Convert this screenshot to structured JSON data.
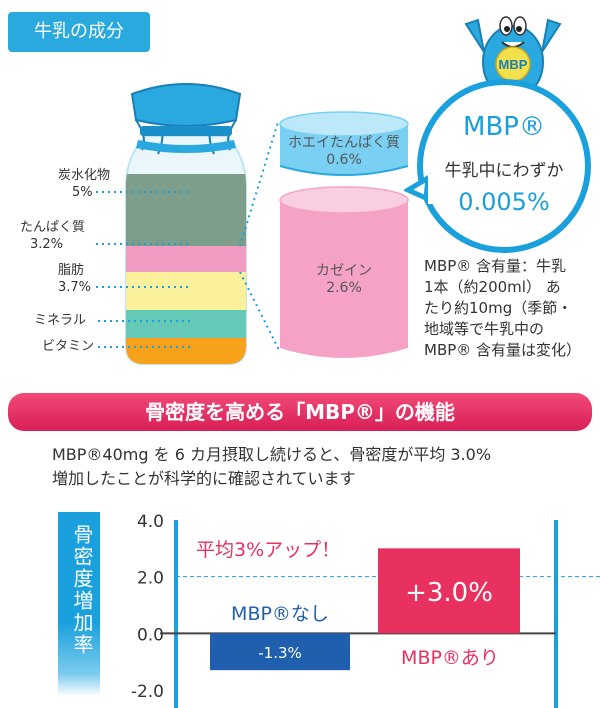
{
  "section_tag": "牛乳の成分",
  "mascot": {
    "label": "MBP"
  },
  "bottle": {
    "layers": [
      {
        "name": "炭水化物",
        "value": "5%",
        "color": "#7c9e8a"
      },
      {
        "name": "たんぱく質",
        "value": "3.2%",
        "color": "#f29bc3"
      },
      {
        "name": "脂肪",
        "value": "3.7%",
        "color": "#fbf19c"
      },
      {
        "name": "ミネラル",
        "value": "",
        "color": "#66c9b7"
      },
      {
        "name": "ビタミン",
        "value": "",
        "color": "#f7a21a"
      }
    ]
  },
  "protein": {
    "whey_label": "ホエイたんぱく質",
    "whey_value": "0.6%",
    "casein_label": "カゼイン",
    "casein_value": "2.6%"
  },
  "mbp_bubble": {
    "title": "MBP®",
    "subtitle": "牛乳中にわずか",
    "percent": "0.005%"
  },
  "mbp_note": [
    "MBP® 含有量：牛乳",
    "1本（約200ml） あ",
    "たり約10mg（季節・",
    "地域等で牛乳中の",
    "MBP® 含有量は変化）"
  ],
  "banner_title": "骨密度を高める「MBP®」の機能",
  "description": [
    "MBP®40mg を 6 カ月摂取し続けると、骨密度が平均 3.0%",
    "増加したことが科学的に確認されています"
  ],
  "chart_data": {
    "type": "bar",
    "categories": [
      "MBP®なし",
      "MBP®あり"
    ],
    "values": [
      -1.3,
      3.0
    ],
    "value_labels": [
      "-1.3%",
      "+3.0%"
    ],
    "ylabel": "骨密度増加率",
    "ylim": [
      -2.0,
      4.0
    ],
    "yticks": [
      "4.0",
      "2.0",
      "0.0",
      "-2.0"
    ],
    "tick_values": [
      4.0,
      2.0,
      0.0,
      -2.0
    ],
    "annotation": "平均3%アップ！",
    "reference_line": 2.0,
    "colors": {
      "without": "#1f5fae",
      "with": "#e8315f",
      "frame": "#1aa0dc"
    }
  }
}
